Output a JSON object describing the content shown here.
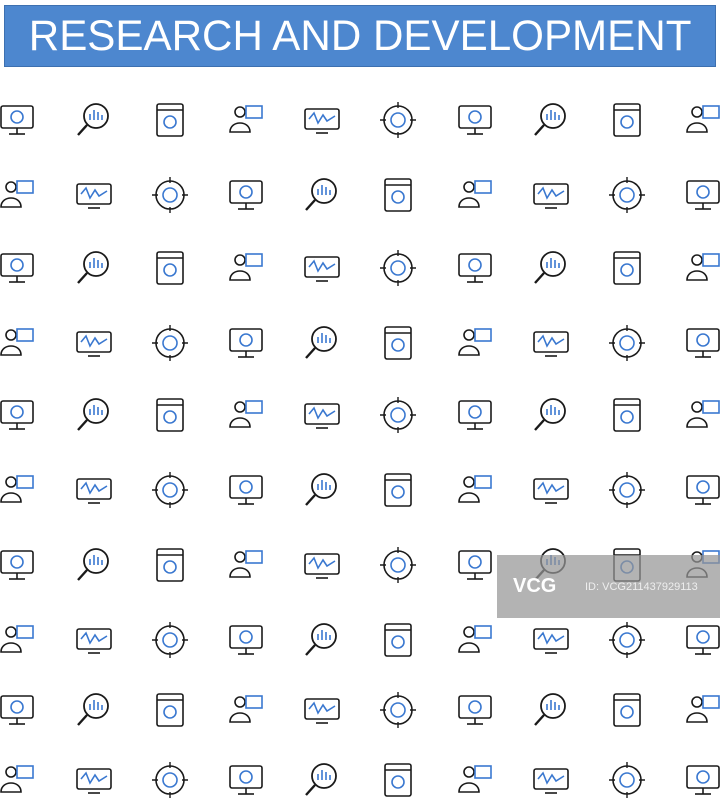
{
  "title": "RESEARCH AND DEVELOPMENT",
  "watermark": {
    "logo": "VCG",
    "id": "ID: VCG211437929113"
  },
  "colors": {
    "banner": "#4d87cf",
    "stroke": "#1a1a1a",
    "accent": "#3a78d0"
  },
  "icons": [
    [
      "desk-computer-icon",
      "web-research-icon",
      "magnifier-chart-icon",
      "user-monitor-icon",
      "monitor-layout-icon",
      "monitor-target-icon",
      "video-tablet-icon",
      "computer-analytics-icon",
      "laptop-user-icon",
      "magnifier-user-icon"
    ],
    [
      "tablet-flowchart-icon",
      "monitor-wave-icon",
      "experiment-tube-icon",
      "target-document-icon",
      "monitor-security-icon",
      "touch-screen-icon",
      "monitor-growth-icon",
      "presenter-icon",
      "meeting-board-icon",
      "monitor-search-icon"
    ],
    [
      "report-eye-icon",
      "user-screen-icon",
      "chart-magnifier-icon",
      "book-user-icon",
      "lab-desk-icon",
      "team-network-icon",
      "dollar-target-icon",
      "report-search-icon",
      "team-search-icon",
      "laptop-dollar-icon"
    ],
    [
      "brain-gears-icon",
      "head-question-icon",
      "checklist-icon",
      "monitor-analysis-icon",
      "idea-puzzle-icon",
      "focus-chart-icon",
      "calendar-search-icon",
      "team-idea-icon",
      "box-team-icon",
      "presentation-icon"
    ],
    [
      "growth-chart-icon",
      "document-search-icon",
      "analysis-board-icon",
      "team-target-icon",
      "magnifier-team-icon",
      "clipboard-check-icon",
      "emotion-faces-icon",
      "idea-bulb-icon",
      "teacher-question-icon",
      "checklist-search-icon"
    ],
    [
      "calendar-search-icon",
      "magnifier-pulse-icon",
      "magnifier-gear-icon",
      "chart-search-icon",
      "money-search-icon",
      "laptop-chart-icon",
      "book-tablet-icon",
      "box-search-icon",
      "laptop-cloud-icon",
      "chat-user-icon"
    ],
    [
      "chat-bubbles-icon",
      "user-hand-icon",
      "magnifier-virus-icon",
      "award-icon",
      "magnifier-target-icon",
      "user-chart-icon",
      "team-circle-icon",
      "question-target-icon",
      "archive-search-icon",
      "touch-web-icon"
    ],
    [
      "tablet-analysis-icon",
      "web-search-icon",
      "video-presenter-icon",
      "eye-pin-icon",
      "magnifier-molecule-icon",
      "laptop-video-icon",
      "laptop-video-icon",
      "laptop-play-icon",
      "telescope-icon",
      "team-meeting-icon"
    ],
    [
      "user-search-icon",
      "magnifier-plus-icon",
      "lab-worker-icon",
      "cycle-search-icon",
      "magnifier-cart-icon",
      "magnifier-graph-icon",
      "magnifier-list-icon",
      "team-network-icon",
      "team-cycle-icon",
      "magnifier-virus-icon"
    ],
    [
      "monitor-gears-icon",
      "wave-search-icon",
      "monitor-magnifier-icon",
      "document-user-icon",
      "info-search-icon",
      "support-agent-icon",
      "tablet-chart-icon",
      "laptop-info-icon",
      "phone-gears-icon",
      "monitor-pulse-icon"
    ]
  ]
}
